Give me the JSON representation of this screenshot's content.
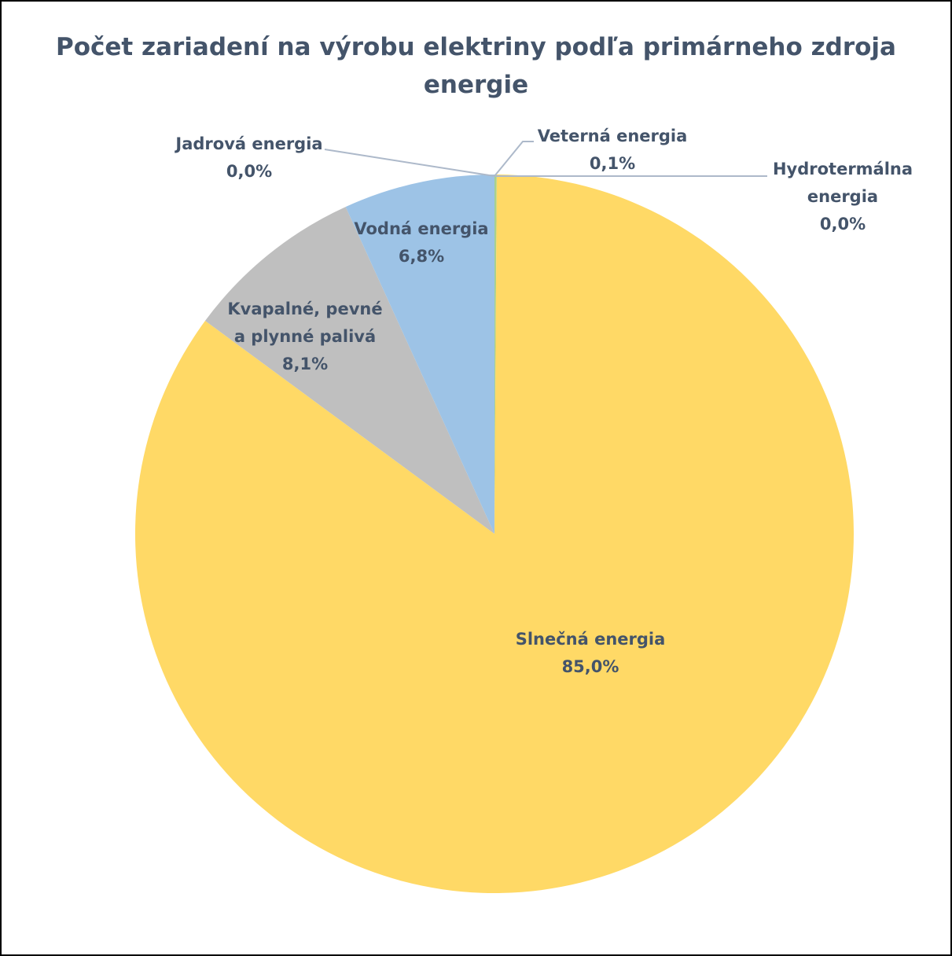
{
  "chart_data": {
    "type": "pie",
    "title": "Počet zariadení na výrobu elektriny podľa primárneho zdroja energie",
    "slices": [
      {
        "name": "Veterná energia",
        "value": 0.1,
        "value_label": "0,1%",
        "color": "#a9d18e"
      },
      {
        "name": "Hydrotermálna energia",
        "value": 0.0,
        "value_label": "0,0%",
        "color": "#8faadc"
      },
      {
        "name": "Slnečná energia",
        "value": 85.0,
        "value_label": "85,0%",
        "color": "#ffd966"
      },
      {
        "name": "Kvapalné, pevné a plynné palivá",
        "value": 8.1,
        "value_label": "8,1%",
        "color": "#bfbfbf"
      },
      {
        "name": "Vodná energia",
        "value": 6.8,
        "value_label": "6,8%",
        "color": "#9dc3e6"
      },
      {
        "name": "Jadrová energia",
        "value": 0.0,
        "value_label": "0,0%",
        "color": "#f4b183"
      }
    ]
  }
}
